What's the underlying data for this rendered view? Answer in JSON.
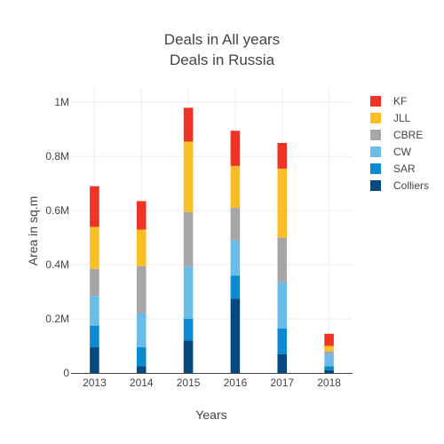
{
  "chart_data": {
    "type": "bar",
    "stacked": true,
    "title": "Deals in All years",
    "subtitle": "Deals in Russia",
    "xlabel": "Years",
    "ylabel": "Area in sq.m",
    "categories": [
      "2013",
      "2014",
      "2015",
      "2016",
      "2017",
      "2018"
    ],
    "ylim": [
      0,
      1050000
    ],
    "yticks": [
      0,
      200000,
      400000,
      600000,
      800000,
      1000000
    ],
    "ytick_labels": [
      "0",
      "0.2M",
      "0.4M",
      "0.6M",
      "0.8M",
      "1M"
    ],
    "grid": true,
    "legend_position": "right",
    "series": [
      {
        "name": "Colliers",
        "color": "#044a80",
        "values": [
          95000,
          25000,
          120000,
          275000,
          70000,
          10000
        ]
      },
      {
        "name": "SAR",
        "color": "#0a8ad0",
        "values": [
          80000,
          70000,
          80000,
          85000,
          95000,
          15000
        ]
      },
      {
        "name": "CW",
        "color": "#6abde8",
        "values": [
          110000,
          125000,
          195000,
          130000,
          170000,
          45000
        ]
      },
      {
        "name": "CBRE",
        "color": "#a6a6a6",
        "values": [
          100000,
          175000,
          200000,
          120000,
          165000,
          10000
        ]
      },
      {
        "name": "JLL",
        "color": "#fbbf24",
        "values": [
          155000,
          135000,
          260000,
          155000,
          255000,
          20000
        ]
      },
      {
        "name": "KF",
        "color": "#ef3325",
        "values": [
          150000,
          105000,
          125000,
          130000,
          95000,
          45000
        ]
      }
    ],
    "legend_order": [
      "KF",
      "JLL",
      "CBRE",
      "CW",
      "SAR",
      "Colliers"
    ]
  }
}
